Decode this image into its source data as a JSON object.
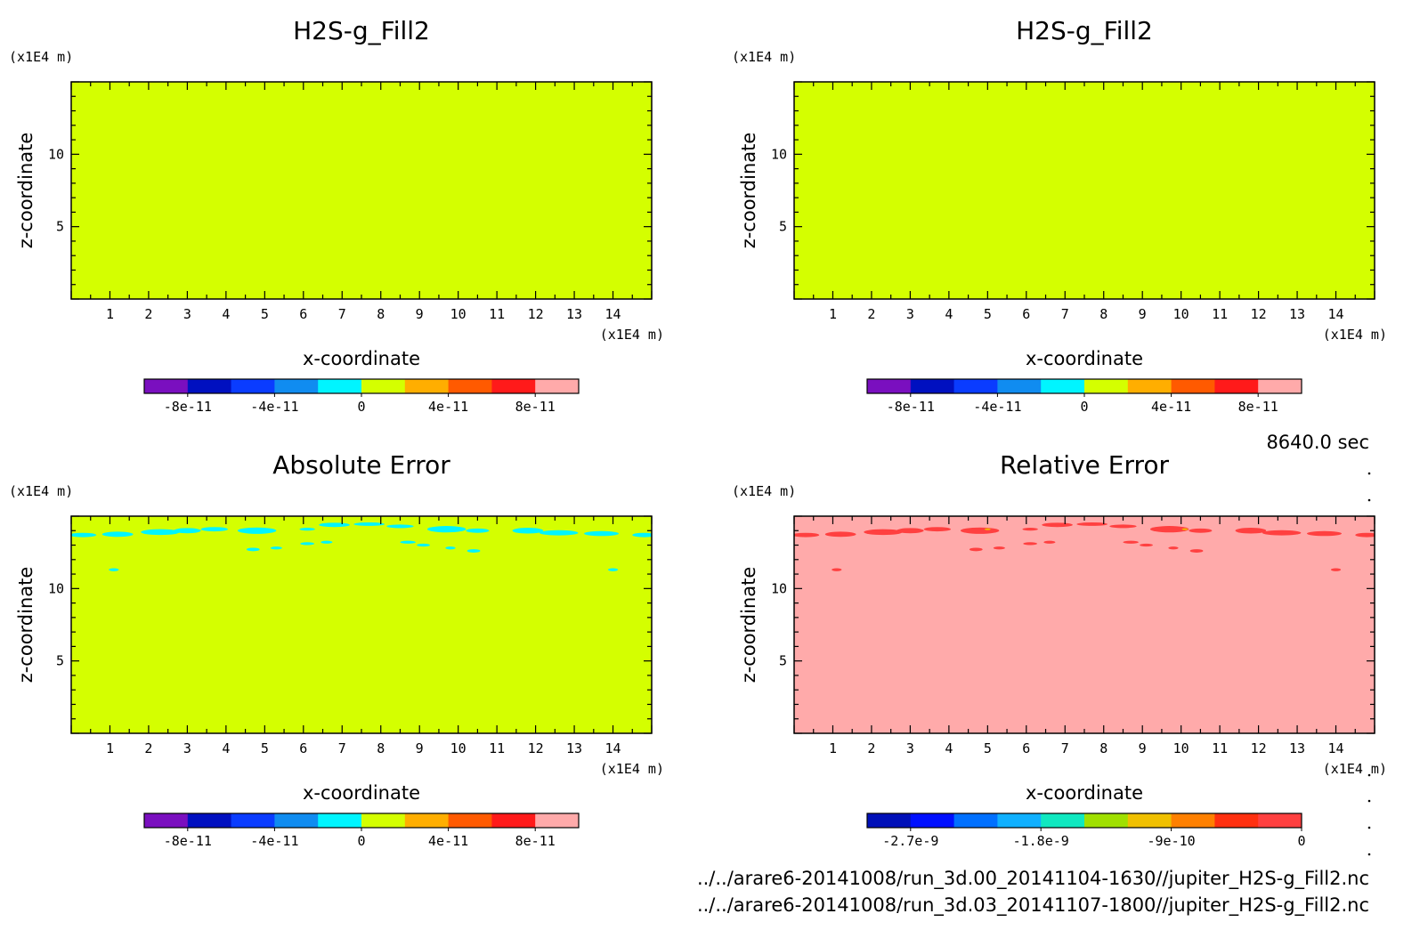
{
  "time_label": "8640.0 sec",
  "footer": {
    "file1": "../../arare6-20141008/run_3d.00_20141104-1630//jupiter_H2S-g_Fill2.nc",
    "file2": "../../arare6-20141008/run_3d.03_20141107-1800//jupiter_H2S-g_Fill2.nc"
  },
  "chart_data": [
    {
      "type": "heatmap",
      "title": "H2S-g_Fill2",
      "xlabel": "x-coordinate",
      "ylabel": "z-coordinate",
      "xunit": "(x1E4 m)",
      "yunit": "(x1E4 m)",
      "xlim": [
        0,
        15
      ],
      "ylim": [
        0,
        15
      ],
      "xticks": [
        "1",
        "2",
        "3",
        "4",
        "5",
        "6",
        "7",
        "8",
        "9",
        "10",
        "11",
        "12",
        "13",
        "14"
      ],
      "yticks": [
        "5",
        "10"
      ],
      "background": "#d4ff00",
      "colorbar": {
        "colors": [
          "#7a0fbf",
          "#0010c0",
          "#0a3cff",
          "#108cf0",
          "#00f5ff",
          "#d4ff00",
          "#ffae00",
          "#ff5a00",
          "#ff1a1a",
          "#ffaaaa"
        ],
        "labels": [
          "-8e-11",
          "-4e-11",
          "0",
          "4e-11",
          "8e-11"
        ]
      },
      "patches": []
    },
    {
      "type": "heatmap",
      "title": "H2S-g_Fill2",
      "xlabel": "x-coordinate",
      "ylabel": "z-coordinate",
      "xunit": "(x1E4 m)",
      "yunit": "(x1E4 m)",
      "xlim": [
        0,
        15
      ],
      "ylim": [
        0,
        15
      ],
      "xticks": [
        "1",
        "2",
        "3",
        "4",
        "5",
        "6",
        "7",
        "8",
        "9",
        "10",
        "11",
        "12",
        "13",
        "14"
      ],
      "yticks": [
        "5",
        "10"
      ],
      "background": "#d4ff00",
      "colorbar": {
        "colors": [
          "#7a0fbf",
          "#0010c0",
          "#0a3cff",
          "#108cf0",
          "#00f5ff",
          "#d4ff00",
          "#ffae00",
          "#ff5a00",
          "#ff1a1a",
          "#ffaaaa"
        ],
        "labels": [
          "-8e-11",
          "-4e-11",
          "0",
          "4e-11",
          "8e-11"
        ]
      },
      "patches": []
    },
    {
      "type": "heatmap",
      "title": "Absolute Error",
      "xlabel": "x-coordinate",
      "ylabel": "z-coordinate",
      "xunit": "(x1E4 m)",
      "yunit": "(x1E4 m)",
      "xlim": [
        0,
        15
      ],
      "ylim": [
        0,
        15
      ],
      "xticks": [
        "1",
        "2",
        "3",
        "4",
        "5",
        "6",
        "7",
        "8",
        "9",
        "10",
        "11",
        "12",
        "13",
        "14"
      ],
      "yticks": [
        "5",
        "10"
      ],
      "background": "#d4ff00",
      "colorbar": {
        "colors": [
          "#7a0fbf",
          "#0010c0",
          "#0a3cff",
          "#108cf0",
          "#00f5ff",
          "#d4ff00",
          "#ffae00",
          "#ff5a00",
          "#ff1a1a",
          "#ffaaaa"
        ],
        "labels": [
          "-8e-11",
          "-4e-11",
          "0",
          "4e-11",
          "8e-11"
        ]
      },
      "patches": [
        {
          "x": 0.3,
          "z": 13.7,
          "rx": 0.35,
          "rz": 0.15,
          "color": "#00f5ff"
        },
        {
          "x": 1.2,
          "z": 13.75,
          "rx": 0.4,
          "rz": 0.18,
          "color": "#00f5ff"
        },
        {
          "x": 2.3,
          "z": 13.9,
          "rx": 0.5,
          "rz": 0.2,
          "color": "#00f5ff"
        },
        {
          "x": 3.0,
          "z": 14.0,
          "rx": 0.35,
          "rz": 0.18,
          "color": "#00f5ff"
        },
        {
          "x": 3.7,
          "z": 14.1,
          "rx": 0.35,
          "rz": 0.15,
          "color": "#00f5ff"
        },
        {
          "x": 4.8,
          "z": 14.0,
          "rx": 0.5,
          "rz": 0.22,
          "color": "#00f5ff"
        },
        {
          "x": 6.1,
          "z": 14.1,
          "rx": 0.2,
          "rz": 0.1,
          "color": "#00f5ff"
        },
        {
          "x": 6.8,
          "z": 14.4,
          "rx": 0.4,
          "rz": 0.15,
          "color": "#00f5ff"
        },
        {
          "x": 7.7,
          "z": 14.45,
          "rx": 0.4,
          "rz": 0.12,
          "color": "#00f5ff"
        },
        {
          "x": 8.5,
          "z": 14.3,
          "rx": 0.35,
          "rz": 0.12,
          "color": "#00f5ff"
        },
        {
          "x": 9.7,
          "z": 14.1,
          "rx": 0.5,
          "rz": 0.22,
          "color": "#00f5ff"
        },
        {
          "x": 10.5,
          "z": 14.0,
          "rx": 0.3,
          "rz": 0.15,
          "color": "#00f5ff"
        },
        {
          "x": 11.8,
          "z": 14.0,
          "rx": 0.4,
          "rz": 0.2,
          "color": "#00f5ff"
        },
        {
          "x": 12.6,
          "z": 13.85,
          "rx": 0.5,
          "rz": 0.18,
          "color": "#00f5ff"
        },
        {
          "x": 13.7,
          "z": 13.8,
          "rx": 0.45,
          "rz": 0.17,
          "color": "#00f5ff"
        },
        {
          "x": 14.8,
          "z": 13.7,
          "rx": 0.3,
          "rz": 0.15,
          "color": "#00f5ff"
        },
        {
          "x": 4.7,
          "z": 12.7,
          "rx": 0.17,
          "rz": 0.12,
          "color": "#00f5ff"
        },
        {
          "x": 5.3,
          "z": 12.8,
          "rx": 0.15,
          "rz": 0.1,
          "color": "#00f5ff"
        },
        {
          "x": 6.1,
          "z": 13.1,
          "rx": 0.18,
          "rz": 0.1,
          "color": "#00f5ff"
        },
        {
          "x": 6.6,
          "z": 13.2,
          "rx": 0.15,
          "rz": 0.1,
          "color": "#00f5ff"
        },
        {
          "x": 8.7,
          "z": 13.2,
          "rx": 0.2,
          "rz": 0.1,
          "color": "#00f5ff"
        },
        {
          "x": 9.1,
          "z": 13.0,
          "rx": 0.17,
          "rz": 0.1,
          "color": "#00f5ff"
        },
        {
          "x": 9.8,
          "z": 12.8,
          "rx": 0.13,
          "rz": 0.1,
          "color": "#00f5ff"
        },
        {
          "x": 10.4,
          "z": 12.6,
          "rx": 0.17,
          "rz": 0.12,
          "color": "#00f5ff"
        },
        {
          "x": 1.1,
          "z": 11.3,
          "rx": 0.13,
          "rz": 0.1,
          "color": "#00f5ff"
        },
        {
          "x": 14.0,
          "z": 11.3,
          "rx": 0.13,
          "rz": 0.1,
          "color": "#00f5ff"
        }
      ]
    },
    {
      "type": "heatmap",
      "title": "Relative Error",
      "xlabel": "x-coordinate",
      "ylabel": "z-coordinate",
      "xunit": "(x1E4 m)",
      "yunit": "(x1E4 m)",
      "xlim": [
        0,
        15
      ],
      "ylim": [
        0,
        15
      ],
      "xticks": [
        "1",
        "2",
        "3",
        "4",
        "5",
        "6",
        "7",
        "8",
        "9",
        "10",
        "11",
        "12",
        "13",
        "14"
      ],
      "yticks": [
        "5",
        "10"
      ],
      "background": "#ffaaaa",
      "colorbar": {
        "colors": [
          "#0010b8",
          "#0010ff",
          "#0070ff",
          "#10b0ff",
          "#10e8c0",
          "#a0e000",
          "#f0c000",
          "#ff8000",
          "#ff3010",
          "#ff4040"
        ],
        "labels": [
          "-2.7e-9",
          "-1.8e-9",
          "-9e-10",
          "0"
        ]
      },
      "patches": [
        {
          "x": 0.3,
          "z": 13.7,
          "rx": 0.35,
          "rz": 0.15,
          "color": "#ff4040"
        },
        {
          "x": 1.2,
          "z": 13.75,
          "rx": 0.4,
          "rz": 0.18,
          "color": "#ff4040"
        },
        {
          "x": 2.3,
          "z": 13.9,
          "rx": 0.5,
          "rz": 0.2,
          "color": "#ff4040"
        },
        {
          "x": 3.0,
          "z": 14.0,
          "rx": 0.35,
          "rz": 0.18,
          "color": "#ff4040"
        },
        {
          "x": 3.7,
          "z": 14.1,
          "rx": 0.35,
          "rz": 0.15,
          "color": "#ff4040"
        },
        {
          "x": 4.8,
          "z": 14.0,
          "rx": 0.5,
          "rz": 0.22,
          "color": "#ff4040"
        },
        {
          "x": 6.1,
          "z": 14.1,
          "rx": 0.2,
          "rz": 0.1,
          "color": "#ff4040"
        },
        {
          "x": 6.8,
          "z": 14.4,
          "rx": 0.4,
          "rz": 0.15,
          "color": "#ff4040"
        },
        {
          "x": 7.7,
          "z": 14.45,
          "rx": 0.4,
          "rz": 0.12,
          "color": "#ff4040"
        },
        {
          "x": 8.5,
          "z": 14.3,
          "rx": 0.35,
          "rz": 0.12,
          "color": "#ff4040"
        },
        {
          "x": 9.7,
          "z": 14.1,
          "rx": 0.5,
          "rz": 0.22,
          "color": "#ff4040"
        },
        {
          "x": 10.5,
          "z": 14.0,
          "rx": 0.3,
          "rz": 0.15,
          "color": "#ff4040"
        },
        {
          "x": 11.8,
          "z": 14.0,
          "rx": 0.4,
          "rz": 0.2,
          "color": "#ff4040"
        },
        {
          "x": 12.6,
          "z": 13.85,
          "rx": 0.5,
          "rz": 0.18,
          "color": "#ff4040"
        },
        {
          "x": 13.7,
          "z": 13.8,
          "rx": 0.45,
          "rz": 0.17,
          "color": "#ff4040"
        },
        {
          "x": 14.8,
          "z": 13.7,
          "rx": 0.3,
          "rz": 0.15,
          "color": "#ff4040"
        },
        {
          "x": 4.7,
          "z": 12.7,
          "rx": 0.17,
          "rz": 0.12,
          "color": "#ff4040"
        },
        {
          "x": 5.3,
          "z": 12.8,
          "rx": 0.15,
          "rz": 0.1,
          "color": "#ff4040"
        },
        {
          "x": 6.1,
          "z": 13.1,
          "rx": 0.18,
          "rz": 0.1,
          "color": "#ff4040"
        },
        {
          "x": 6.6,
          "z": 13.2,
          "rx": 0.15,
          "rz": 0.1,
          "color": "#ff4040"
        },
        {
          "x": 8.7,
          "z": 13.2,
          "rx": 0.2,
          "rz": 0.1,
          "color": "#ff4040"
        },
        {
          "x": 9.1,
          "z": 13.0,
          "rx": 0.17,
          "rz": 0.1,
          "color": "#ff4040"
        },
        {
          "x": 9.8,
          "z": 12.8,
          "rx": 0.13,
          "rz": 0.1,
          "color": "#ff4040"
        },
        {
          "x": 10.4,
          "z": 12.6,
          "rx": 0.17,
          "rz": 0.12,
          "color": "#ff4040"
        },
        {
          "x": 1.1,
          "z": 11.3,
          "rx": 0.13,
          "rz": 0.1,
          "color": "#ff4040"
        },
        {
          "x": 14.0,
          "z": 11.3,
          "rx": 0.13,
          "rz": 0.1,
          "color": "#ff4040"
        },
        {
          "x": 5.0,
          "z": 14.1,
          "rx": 0.08,
          "rz": 0.06,
          "color": "#f0c000"
        },
        {
          "x": 10.1,
          "z": 14.1,
          "rx": 0.08,
          "rz": 0.06,
          "color": "#f0c000"
        }
      ]
    }
  ]
}
